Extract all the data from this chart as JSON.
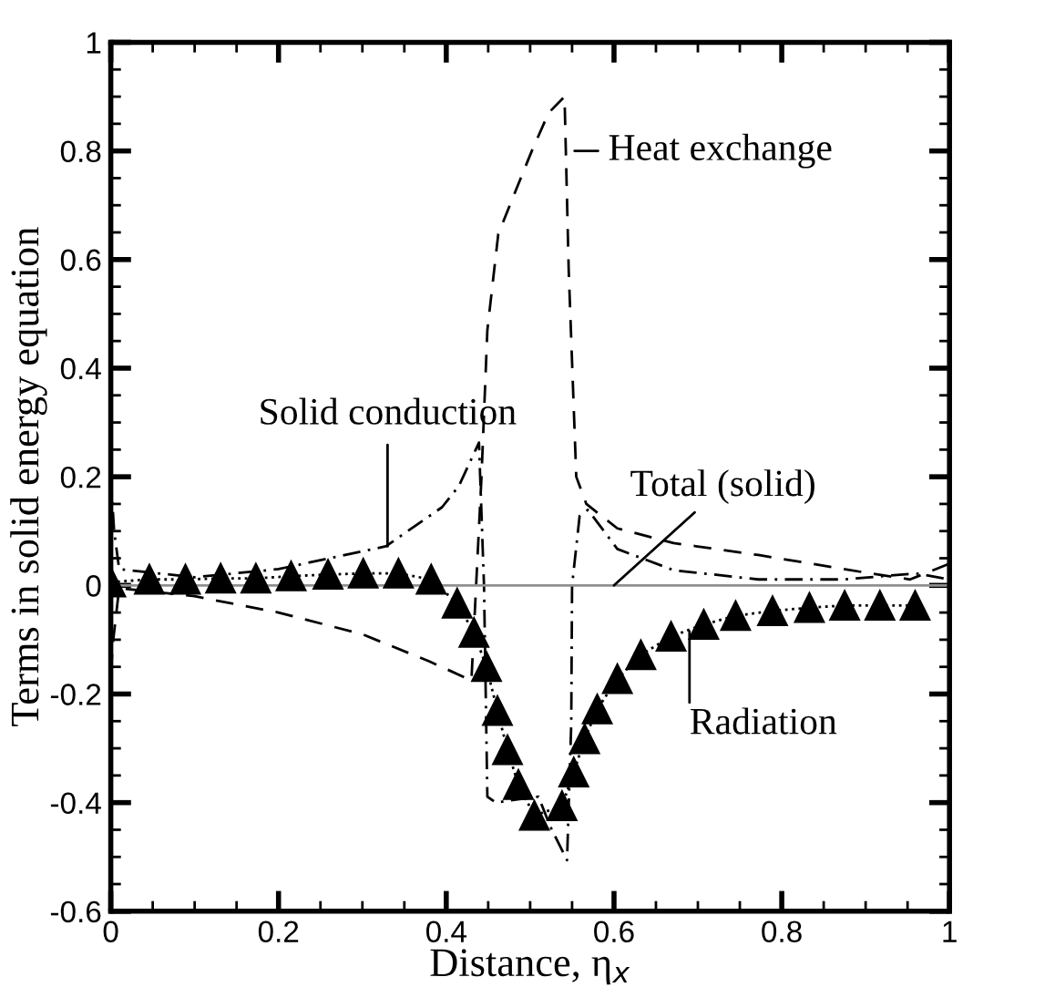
{
  "chart_data": {
    "type": "line",
    "xlabel": "Distance, η$_{x}$",
    "ylabel": "Terms in solid energy equation",
    "xlim": [
      0,
      1
    ],
    "ylim": [
      -0.6,
      1
    ],
    "xticks": [
      0,
      0.2,
      0.4,
      0.6,
      0.8,
      1
    ],
    "yticks": [
      -0.6,
      -0.4,
      -0.2,
      0,
      0.2,
      0.4,
      0.6,
      0.8,
      1
    ],
    "grid": false,
    "legend": false,
    "series": [
      {
        "color": "#000000",
        "line_style": "dashed",
        "marker": "none",
        "x": [
          0.0,
          0.003,
          0.01,
          0.1,
          0.2,
          0.3,
          0.38,
          0.43,
          0.442,
          0.449,
          0.462,
          0.482,
          0.502,
          0.522,
          0.541,
          0.546,
          0.555,
          0.567,
          0.604,
          0.671,
          0.772,
          0.906,
          0.953,
          1.0
        ],
        "values": [
          -0.16,
          -0.1,
          -0.005,
          -0.02,
          -0.05,
          -0.09,
          -0.14,
          -0.175,
          0.2,
          0.47,
          0.647,
          0.724,
          0.8,
          0.87,
          0.9,
          0.58,
          0.2,
          0.15,
          0.105,
          0.078,
          0.056,
          0.022,
          0.011,
          0.04
        ]
      },
      {
        "color": "#000000",
        "line_style": "dashdot",
        "marker": "none",
        "x": [
          0.0,
          0.004,
          0.01,
          0.1,
          0.2,
          0.328,
          0.395,
          0.415,
          0.439,
          0.445,
          0.449,
          0.459,
          0.485,
          0.51,
          0.524,
          0.544,
          0.549,
          0.55,
          0.559,
          0.569,
          0.604,
          0.671,
          0.772,
          0.873,
          0.96,
          1.0
        ],
        "values": [
          0.2,
          0.1,
          0.03,
          0.015,
          0.03,
          0.072,
          0.144,
          0.183,
          0.263,
          0.0,
          -0.389,
          -0.4,
          -0.394,
          -0.389,
          -0.444,
          -0.506,
          -0.256,
          0.0,
          0.128,
          0.139,
          0.067,
          0.028,
          0.011,
          0.011,
          0.022,
          0.011
        ]
      },
      {
        "color": "#909090",
        "line_style": "solid",
        "marker": "none",
        "x": [
          0.0,
          1.0
        ],
        "values": [
          0.0,
          0.0
        ]
      },
      {
        "color": "#000000",
        "line_style": "dotted",
        "marker": "triangle",
        "x": [
          0.0,
          0.046,
          0.089,
          0.131,
          0.173,
          0.215,
          0.259,
          0.301,
          0.343,
          0.382,
          0.413,
          0.433,
          0.448,
          0.461,
          0.473,
          0.486,
          0.505,
          0.538,
          0.552,
          0.565,
          0.58,
          0.604,
          0.632,
          0.668,
          0.707,
          0.745,
          0.789,
          0.833,
          0.875,
          0.917,
          0.959
        ],
        "values": [
          0.006,
          0.011,
          0.011,
          0.013,
          0.013,
          0.017,
          0.02,
          0.022,
          0.022,
          0.011,
          -0.033,
          -0.087,
          -0.15,
          -0.231,
          -0.303,
          -0.367,
          -0.424,
          -0.406,
          -0.344,
          -0.283,
          -0.228,
          -0.172,
          -0.128,
          -0.094,
          -0.072,
          -0.056,
          -0.047,
          -0.041,
          -0.037,
          -0.037,
          -0.037
        ]
      }
    ],
    "annotations": [
      {
        "text": "Heat exchange",
        "x": 0.553,
        "y": 0.8
      },
      {
        "text": "Solid conduction",
        "x": 0.33,
        "y": 0.072
      },
      {
        "text": "Total (solid)",
        "x": 0.6,
        "y": 0.0
      },
      {
        "text": "Radiation",
        "x": 0.69,
        "y": -0.085
      }
    ]
  }
}
